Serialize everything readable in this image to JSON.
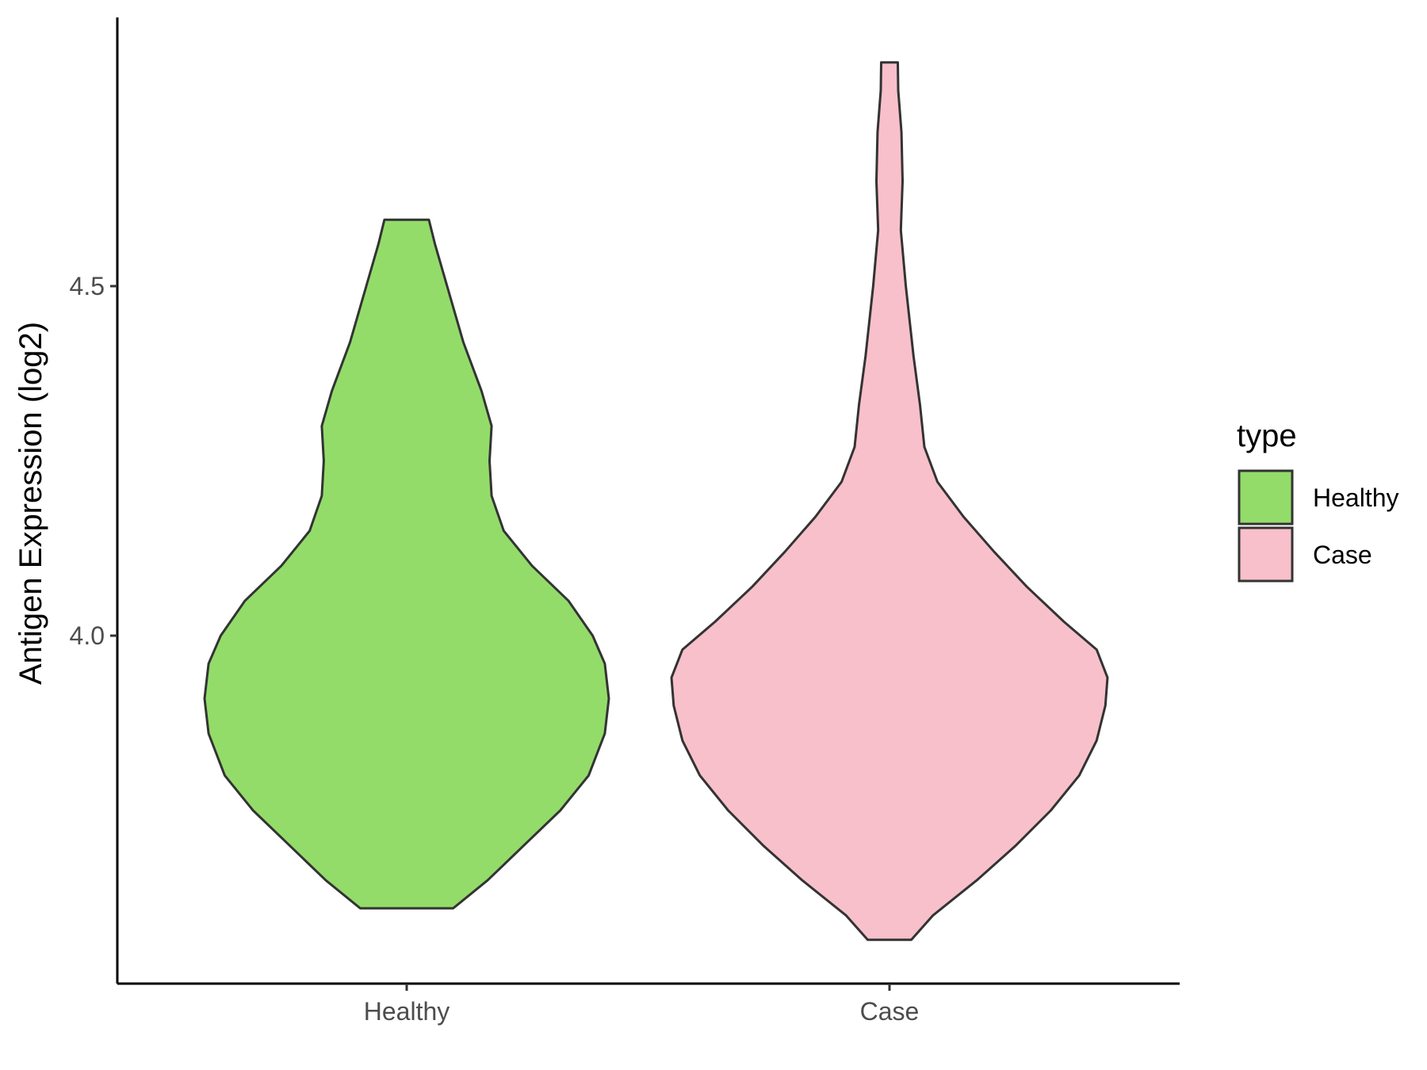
{
  "chart_data": {
    "type": "violin",
    "title": "",
    "xlabel": "",
    "ylabel": "Antigen Expression (log2)",
    "categories": [
      "Healthy",
      "Case"
    ],
    "y_ticks": [
      {
        "value": 4.0,
        "label": "4.0"
      },
      {
        "value": 4.5,
        "label": "4.5"
      }
    ],
    "ylim": [
      3.5,
      4.88
    ],
    "grid": false,
    "legend": {
      "title": "type",
      "placement": "right",
      "entries": [
        {
          "label": "Healthy",
          "color": "#93dc6a"
        },
        {
          "label": "Case",
          "color": "#f8c0cb"
        }
      ]
    },
    "series": [
      {
        "name": "Healthy",
        "color": "#93dc6a",
        "min": 3.61,
        "max": 4.595,
        "density_profile": [
          {
            "y": 3.61,
            "w": 0.23
          },
          {
            "y": 3.65,
            "w": 0.4
          },
          {
            "y": 3.7,
            "w": 0.58
          },
          {
            "y": 3.75,
            "w": 0.76
          },
          {
            "y": 3.8,
            "w": 0.9
          },
          {
            "y": 3.86,
            "w": 0.98
          },
          {
            "y": 3.91,
            "w": 1.0
          },
          {
            "y": 3.96,
            "w": 0.98
          },
          {
            "y": 4.0,
            "w": 0.92
          },
          {
            "y": 4.05,
            "w": 0.8
          },
          {
            "y": 4.1,
            "w": 0.62
          },
          {
            "y": 4.15,
            "w": 0.48
          },
          {
            "y": 4.2,
            "w": 0.42
          },
          {
            "y": 4.25,
            "w": 0.41
          },
          {
            "y": 4.3,
            "w": 0.42
          },
          {
            "y": 4.35,
            "w": 0.37
          },
          {
            "y": 4.42,
            "w": 0.28
          },
          {
            "y": 4.5,
            "w": 0.2
          },
          {
            "y": 4.56,
            "w": 0.14
          },
          {
            "y": 4.595,
            "w": 0.11
          }
        ]
      },
      {
        "name": "Case",
        "color": "#f8c0cb",
        "min": 3.565,
        "max": 4.82,
        "density_profile": [
          {
            "y": 3.565,
            "w": 0.1
          },
          {
            "y": 3.6,
            "w": 0.2
          },
          {
            "y": 3.65,
            "w": 0.4
          },
          {
            "y": 3.7,
            "w": 0.58
          },
          {
            "y": 3.75,
            "w": 0.74
          },
          {
            "y": 3.8,
            "w": 0.87
          },
          {
            "y": 3.85,
            "w": 0.95
          },
          {
            "y": 3.9,
            "w": 0.99
          },
          {
            "y": 3.94,
            "w": 1.0
          },
          {
            "y": 3.98,
            "w": 0.95
          },
          {
            "y": 4.02,
            "w": 0.8
          },
          {
            "y": 4.07,
            "w": 0.63
          },
          {
            "y": 4.12,
            "w": 0.48
          },
          {
            "y": 4.17,
            "w": 0.34
          },
          {
            "y": 4.22,
            "w": 0.22
          },
          {
            "y": 4.27,
            "w": 0.16
          },
          {
            "y": 4.33,
            "w": 0.14
          },
          {
            "y": 4.4,
            "w": 0.11
          },
          {
            "y": 4.5,
            "w": 0.075
          },
          {
            "y": 4.58,
            "w": 0.052
          },
          {
            "y": 4.65,
            "w": 0.06
          },
          {
            "y": 4.72,
            "w": 0.055
          },
          {
            "y": 4.78,
            "w": 0.04
          },
          {
            "y": 4.82,
            "w": 0.038
          }
        ]
      }
    ]
  }
}
